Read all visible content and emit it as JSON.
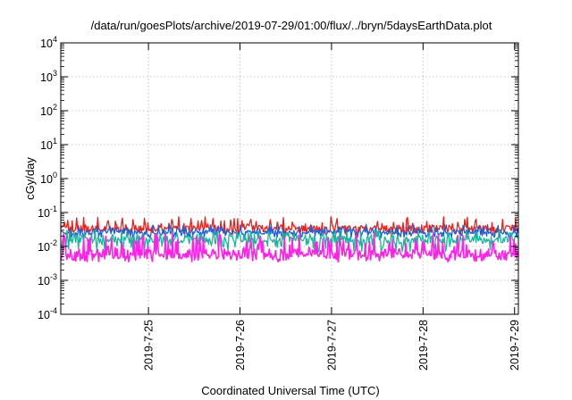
{
  "chart_data": {
    "type": "line",
    "title": "/data/run/goesPlots/archive/2019-07-29/01:00/flux/../bryn/5daysEarthData.plot",
    "xlabel": "Coordinated Universal Time (UTC)",
    "ylabel": "cGy/day",
    "y_scale": "log",
    "ylim": [
      0.0001,
      10000
    ],
    "y_ticks": [
      {
        "value": 0.0001,
        "base": "10",
        "exp": "-4"
      },
      {
        "value": 0.001,
        "base": "10",
        "exp": "-3"
      },
      {
        "value": 0.01,
        "base": "10",
        "exp": "-2"
      },
      {
        "value": 0.1,
        "base": "10",
        "exp": "-1"
      },
      {
        "value": 1,
        "base": "10",
        "exp": "0"
      },
      {
        "value": 10,
        "base": "10",
        "exp": "1"
      },
      {
        "value": 100,
        "base": "10",
        "exp": "2"
      },
      {
        "value": 1000,
        "base": "10",
        "exp": "3"
      },
      {
        "value": 10000,
        "base": "10",
        "exp": "4"
      }
    ],
    "xlim": [
      "2019-07-24T01:00",
      "2019-07-29T01:00"
    ],
    "x_ticks": [
      {
        "value": "2019-07-25T00:00",
        "label": "2019-7-25"
      },
      {
        "value": "2019-07-26T00:00",
        "label": "2019-7-26"
      },
      {
        "value": "2019-07-27T00:00",
        "label": "2019-7-27"
      },
      {
        "value": "2019-07-28T00:00",
        "label": "2019-7-28"
      },
      {
        "value": "2019-07-29T00:00",
        "label": "2019-7-29"
      }
    ],
    "grid": true,
    "legend": "none",
    "series": [
      {
        "color": "#e8201a",
        "typical_value": 0.035,
        "low": 0.022,
        "high": 0.075
      },
      {
        "color": "#1f5fd6",
        "typical_value": 0.027,
        "low": 0.018,
        "high": 0.045
      },
      {
        "color": "#1ab59a",
        "typical_value": 0.016,
        "low": 0.007,
        "high": 0.03
      },
      {
        "color": "#ff22e6",
        "typical_value": 0.006,
        "low": 0.0035,
        "high": 0.025
      }
    ]
  }
}
